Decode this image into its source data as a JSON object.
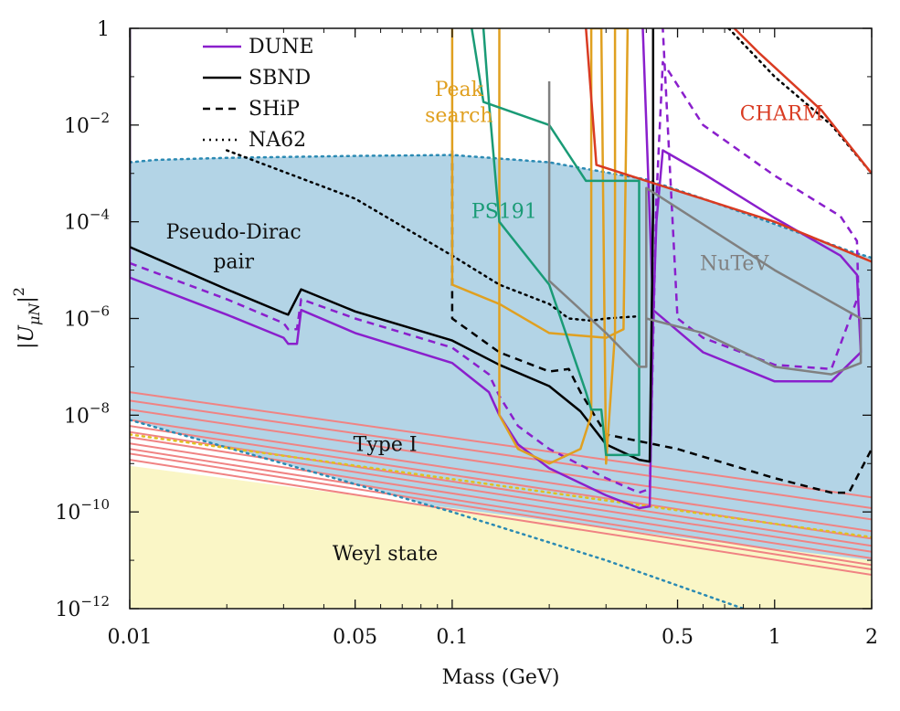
{
  "chart_data": {
    "type": "line",
    "title": "",
    "xlabel": "Mass (GeV)",
    "ylabel": "|U_{μN}|^2",
    "xscale": "log",
    "yscale": "log",
    "xlim": [
      0.01,
      2
    ],
    "ylim": [
      1e-12,
      1
    ],
    "grid": false,
    "legend_placement": "top-left",
    "xticks": [
      {
        "value": 0.01,
        "label": "0.01"
      },
      {
        "value": 0.05,
        "label": "0.05"
      },
      {
        "value": 0.1,
        "label": "0.1"
      },
      {
        "value": 0.5,
        "label": "0.5"
      },
      {
        "value": 1,
        "label": "1"
      },
      {
        "value": 2,
        "label": "2"
      }
    ],
    "yticks": [
      {
        "value": 1,
        "base": "1",
        "exp": ""
      },
      {
        "value": 0.01,
        "base": "10",
        "exp": "−2"
      },
      {
        "value": 0.0001,
        "base": "10",
        "exp": "−4"
      },
      {
        "value": 1e-06,
        "base": "10",
        "exp": "−6"
      },
      {
        "value": 1e-08,
        "base": "10",
        "exp": "−8"
      },
      {
        "value": 1e-10,
        "base": "10",
        "exp": "−10"
      },
      {
        "value": 1e-12,
        "base": "10",
        "exp": "−12"
      }
    ],
    "legend": [
      {
        "name": "DUNE",
        "color": "#8a1fcc",
        "dash": "solid"
      },
      {
        "name": "SBND",
        "color": "#000000",
        "dash": "solid"
      },
      {
        "name": "SHiP",
        "color": "#000000",
        "dash": "dashed"
      },
      {
        "name": "NA62",
        "color": "#000000",
        "dash": "dotted"
      }
    ],
    "region_labels": [
      {
        "text": "Pseudo-Dirac",
        "x": 0.021,
        "y": 4.5e-05,
        "color": "#111111"
      },
      {
        "text": "pair",
        "x": 0.021,
        "y": 1.1e-05,
        "color": "#111111"
      },
      {
        "text": "Type I",
        "x": 0.062,
        "y": 1.8e-09,
        "color": "#111111"
      },
      {
        "text": "Weyl state",
        "x": 0.062,
        "y": 1e-11,
        "color": "#111111"
      },
      {
        "text": "Peak",
        "x": 0.105,
        "y": 0.04,
        "color": "#e0a020"
      },
      {
        "text": "search",
        "x": 0.105,
        "y": 0.0115,
        "color": "#e0a020"
      },
      {
        "text": "PS191",
        "x": 0.145,
        "y": 0.00012,
        "color": "#1a9b76"
      },
      {
        "text": "CHARM",
        "x": 1.05,
        "y": 0.0125,
        "color": "#d93b22"
      },
      {
        "text": "NuTeV",
        "x": 0.75,
        "y": 1e-05,
        "color": "#808080"
      }
    ],
    "regions": [
      {
        "name": "Pseudo-Dirac pair",
        "fill": "#b3d4e6",
        "points": [
          [
            0.01,
            0.0017
          ],
          [
            0.012,
            0.0019
          ],
          [
            0.02,
            0.0021
          ],
          [
            0.05,
            0.0023
          ],
          [
            0.1,
            0.0024
          ],
          [
            0.2,
            0.0017
          ],
          [
            0.4,
            0.00075
          ],
          [
            0.6,
            0.0003
          ],
          [
            1.0,
            9e-05
          ],
          [
            1.7,
            2.5e-05
          ],
          [
            2.0,
            1.8e-05
          ],
          [
            2.0,
            1e-12
          ],
          [
            0.8,
            1e-12
          ],
          [
            0.3,
            1e-11
          ],
          [
            0.1,
            1e-10
          ],
          [
            0.03,
            1e-09
          ],
          [
            0.01,
            8e-09
          ]
        ]
      },
      {
        "name": "Weyl state",
        "fill": "#faf6c6",
        "points": [
          [
            0.01,
            1e-12
          ],
          [
            0.01,
            9e-10
          ],
          [
            0.1,
            1.2e-10
          ],
          [
            0.5,
            3e-11
          ],
          [
            2.0,
            1e-11
          ],
          [
            2.0,
            1e-12
          ]
        ]
      }
    ],
    "series": [
      {
        "name": "DUNE",
        "color": "#8a1fcc",
        "dash": "solid",
        "width": 2.5,
        "points": [
          [
            0.01,
            1
          ],
          [
            0.01,
            7e-06
          ],
          [
            0.02,
            1.2e-06
          ],
          [
            0.03,
            4e-07
          ],
          [
            0.031,
            3e-07
          ],
          [
            0.033,
            3e-07
          ],
          [
            0.034,
            1.5e-06
          ],
          [
            0.05,
            5e-07
          ],
          [
            0.1,
            1.2e-07
          ],
          [
            0.13,
            3e-08
          ],
          [
            0.14,
            1e-08
          ],
          [
            0.16,
            2.5e-09
          ],
          [
            0.2,
            8e-10
          ],
          [
            0.3,
            2.2e-10
          ],
          [
            0.38,
            1.2e-10
          ],
          [
            0.41,
            1.3e-10
          ],
          [
            0.42,
            1e-06
          ],
          [
            0.43,
            0.0001
          ],
          [
            0.45,
            0.003
          ],
          [
            0.6,
            0.001
          ],
          [
            1.0,
            0.00012
          ],
          [
            1.6,
            2e-05
          ],
          [
            1.8,
            8e-06
          ],
          [
            1.85,
            2e-07
          ],
          [
            1.5,
            5e-08
          ],
          [
            1.0,
            5e-08
          ],
          [
            0.6,
            2e-07
          ],
          [
            0.42,
            1.5e-06
          ],
          [
            0.39,
            1
          ]
        ]
      },
      {
        "name": "DUNE (dashed)",
        "color": "#8a1fcc",
        "dash": "dashed",
        "width": 2.5,
        "points": [
          [
            0.01,
            1.4e-05
          ],
          [
            0.02,
            2.5e-06
          ],
          [
            0.03,
            8e-07
          ],
          [
            0.031,
            6e-07
          ],
          [
            0.033,
            6e-07
          ],
          [
            0.034,
            2.5e-06
          ],
          [
            0.05,
            1e-06
          ],
          [
            0.1,
            2.5e-07
          ],
          [
            0.13,
            7e-08
          ],
          [
            0.14,
            2.5e-08
          ],
          [
            0.16,
            6e-09
          ],
          [
            0.2,
            2e-09
          ],
          [
            0.3,
            5e-10
          ],
          [
            0.38,
            2.5e-10
          ],
          [
            0.41,
            3e-10
          ],
          [
            0.43,
            0.0003
          ],
          [
            0.45,
            0.2
          ],
          [
            0.6,
            0.01
          ],
          [
            1.0,
            0.0009
          ],
          [
            1.6,
            0.00013
          ],
          [
            1.8,
            4e-05
          ],
          [
            1.82,
            3e-06
          ],
          [
            1.5,
            9e-08
          ],
          [
            1.0,
            1.1e-07
          ],
          [
            0.6,
            4e-07
          ],
          [
            0.5,
            1e-06
          ],
          [
            0.45,
            1
          ]
        ]
      },
      {
        "name": "SBND",
        "color": "#000000",
        "dash": "solid",
        "width": 2.5,
        "points": [
          [
            0.01,
            1
          ],
          [
            0.01,
            3e-05
          ],
          [
            0.02,
            4e-06
          ],
          [
            0.03,
            1.3e-06
          ],
          [
            0.031,
            1.2e-06
          ],
          [
            0.034,
            4e-06
          ],
          [
            0.05,
            1.4e-06
          ],
          [
            0.1,
            3.5e-07
          ],
          [
            0.14,
            1.1e-07
          ],
          [
            0.2,
            4e-08
          ],
          [
            0.25,
            1.2e-08
          ],
          [
            0.3,
            2.5e-09
          ],
          [
            0.38,
            1.2e-09
          ],
          [
            0.41,
            1.1e-09
          ],
          [
            0.42,
            0.0002
          ],
          [
            0.42,
            1
          ]
        ]
      },
      {
        "name": "SHiP",
        "color": "#000000",
        "dash": "dashed",
        "width": 2.5,
        "points": [
          [
            0.1,
            0.003
          ],
          [
            0.1,
            1e-06
          ],
          [
            0.14,
            2e-07
          ],
          [
            0.2,
            8e-08
          ],
          [
            0.23,
            9e-08
          ],
          [
            0.25,
            3e-08
          ],
          [
            0.3,
            4e-09
          ],
          [
            0.5,
            2e-09
          ],
          [
            1.0,
            5e-10
          ],
          [
            1.5,
            2.5e-10
          ],
          [
            1.7,
            2.5e-10
          ],
          [
            2.0,
            2e-09
          ]
        ]
      },
      {
        "name": "NA62",
        "color": "#000000",
        "dash": "dotted",
        "width": 2.5,
        "points": [
          [
            0.02,
            0.003
          ],
          [
            0.05,
            0.0003
          ],
          [
            0.1,
            2e-05
          ],
          [
            0.14,
            5e-06
          ],
          [
            0.2,
            2e-06
          ],
          [
            0.23,
            1e-06
          ],
          [
            0.27,
            9e-07
          ],
          [
            0.3,
            1e-06
          ],
          [
            0.37,
            1.1e-06
          ]
        ]
      },
      {
        "name": "NA62 (upper)",
        "color": "#000000",
        "dash": "dotted",
        "width": 2.5,
        "points": [
          [
            0.72,
            1
          ],
          [
            1.0,
            0.1
          ],
          [
            1.5,
            0.01
          ],
          [
            2.0,
            0.001
          ]
        ]
      },
      {
        "name": "Peak search",
        "color": "#e0a020",
        "dash": "solid",
        "width": 2.5,
        "points": [
          [
            0.1,
            1
          ],
          [
            0.1,
            5e-06
          ],
          [
            0.14,
            2e-06
          ],
          [
            0.2,
            5e-07
          ],
          [
            0.3,
            4e-07
          ],
          [
            0.34,
            6e-07
          ],
          [
            0.35,
            1
          ],
          [
            0.32,
            1
          ],
          [
            0.32,
            5e-07
          ],
          [
            0.3,
            1e-09
          ],
          [
            0.29,
            1
          ],
          [
            0.27,
            1
          ],
          [
            0.27,
            1e-08
          ],
          [
            0.25,
            2e-09
          ],
          [
            0.2,
            1e-09
          ],
          [
            0.16,
            2e-09
          ],
          [
            0.14,
            1e-08
          ],
          [
            0.14,
            1
          ]
        ]
      },
      {
        "name": "PS191",
        "color": "#1a9b76",
        "dash": "solid",
        "width": 2.5,
        "points": [
          [
            0.115,
            1
          ],
          [
            0.125,
            0.03
          ],
          [
            0.2,
            0.01
          ],
          [
            0.26,
            0.0007
          ],
          [
            0.3,
            0.0007
          ],
          [
            0.38,
            0.0007
          ],
          [
            0.38,
            1.5e-09
          ],
          [
            0.3,
            1.5e-09
          ],
          [
            0.29,
            1.3e-08
          ],
          [
            0.27,
            1.3e-08
          ],
          [
            0.26,
            3e-08
          ],
          [
            0.2,
            5e-06
          ],
          [
            0.14,
            0.0001
          ],
          [
            0.13,
            0.03
          ],
          [
            0.125,
            1
          ]
        ]
      },
      {
        "name": "CHARM",
        "color": "#d93b22",
        "dash": "solid",
        "width": 2.5,
        "points": [
          [
            0.26,
            1
          ],
          [
            0.28,
            0.0015
          ],
          [
            0.4,
            0.0007
          ],
          [
            1.0,
            0.0001
          ],
          [
            1.8,
            2e-05
          ],
          [
            2.0,
            1.5e-05
          ]
        ]
      },
      {
        "name": "CHARM (upper)",
        "color": "#d93b22",
        "dash": "solid",
        "width": 2.5,
        "points": [
          [
            0.75,
            1
          ],
          [
            0.9,
            0.3
          ],
          [
            1.4,
            0.02
          ],
          [
            2.0,
            0.001
          ]
        ]
      },
      {
        "name": "NuTeV",
        "color": "#808080",
        "dash": "solid",
        "width": 2.5,
        "points": [
          [
            0.2,
            0.08
          ],
          [
            0.2,
            6e-06
          ],
          [
            0.3,
            5e-07
          ],
          [
            0.38,
            1e-07
          ],
          [
            0.4,
            1e-07
          ],
          [
            0.4,
            0.0005
          ],
          [
            1.0,
            1e-05
          ],
          [
            1.85,
            1e-06
          ],
          [
            1.85,
            1.2e-07
          ],
          [
            1.5,
            7e-08
          ],
          [
            1.0,
            1e-07
          ],
          [
            0.6,
            5e-07
          ],
          [
            0.4,
            1e-06
          ]
        ]
      }
    ],
    "type_i_band": {
      "color": "#f08383",
      "note": "family of parallel lines",
      "lines": [
        [
          [
            0.01,
            3e-08
          ],
          [
            2.0,
            2e-10
          ]
        ],
        [
          [
            0.01,
            2e-08
          ],
          [
            2.0,
            1.2e-10
          ]
        ],
        [
          [
            0.01,
            1.3e-08
          ],
          [
            2.0,
            7e-11
          ]
        ],
        [
          [
            0.01,
            8e-09
          ],
          [
            2.0,
            4e-11
          ]
        ],
        [
          [
            0.01,
            6e-09
          ],
          [
            2.0,
            2.8e-11
          ]
        ],
        [
          [
            0.01,
            4.5e-09
          ],
          [
            2.0,
            2e-11
          ]
        ],
        [
          [
            0.01,
            3.5e-09
          ],
          [
            2.0,
            1.5e-11
          ]
        ],
        [
          [
            0.01,
            2.6e-09
          ],
          [
            2.0,
            1.1e-11
          ]
        ],
        [
          [
            0.01,
            2e-09
          ],
          [
            2.0,
            8e-12
          ]
        ],
        [
          [
            0.01,
            1.6e-09
          ],
          [
            2.0,
            6.5e-12
          ]
        ],
        [
          [
            0.01,
            1.2e-09
          ],
          [
            2.0,
            5e-12
          ]
        ]
      ]
    },
    "boundary_lines": [
      {
        "name": "Pseudo-Dirac upper boundary",
        "color": "#2b8ab3",
        "dash": "dotted",
        "points": [
          [
            0.01,
            0.0017
          ],
          [
            0.012,
            0.0019
          ],
          [
            0.02,
            0.0021
          ],
          [
            0.05,
            0.0023
          ],
          [
            0.1,
            0.0024
          ],
          [
            0.2,
            0.0017
          ],
          [
            0.4,
            0.00075
          ],
          [
            0.6,
            0.0003
          ],
          [
            1.0,
            9e-05
          ],
          [
            1.7,
            2.5e-05
          ],
          [
            2.0,
            1.8e-05
          ]
        ]
      },
      {
        "name": "Pseudo-Dirac lower boundary",
        "color": "#2b8ab3",
        "dash": "dotted",
        "points": [
          [
            0.01,
            8e-09
          ],
          [
            0.03,
            1e-09
          ],
          [
            0.1,
            1e-10
          ],
          [
            0.3,
            1e-11
          ],
          [
            0.8,
            1e-12
          ]
        ]
      },
      {
        "name": "Type I centre",
        "color": "#e0c020",
        "dash": "dotted",
        "points": [
          [
            0.01,
            4e-09
          ],
          [
            2.0,
            3e-11
          ]
        ]
      }
    ]
  }
}
